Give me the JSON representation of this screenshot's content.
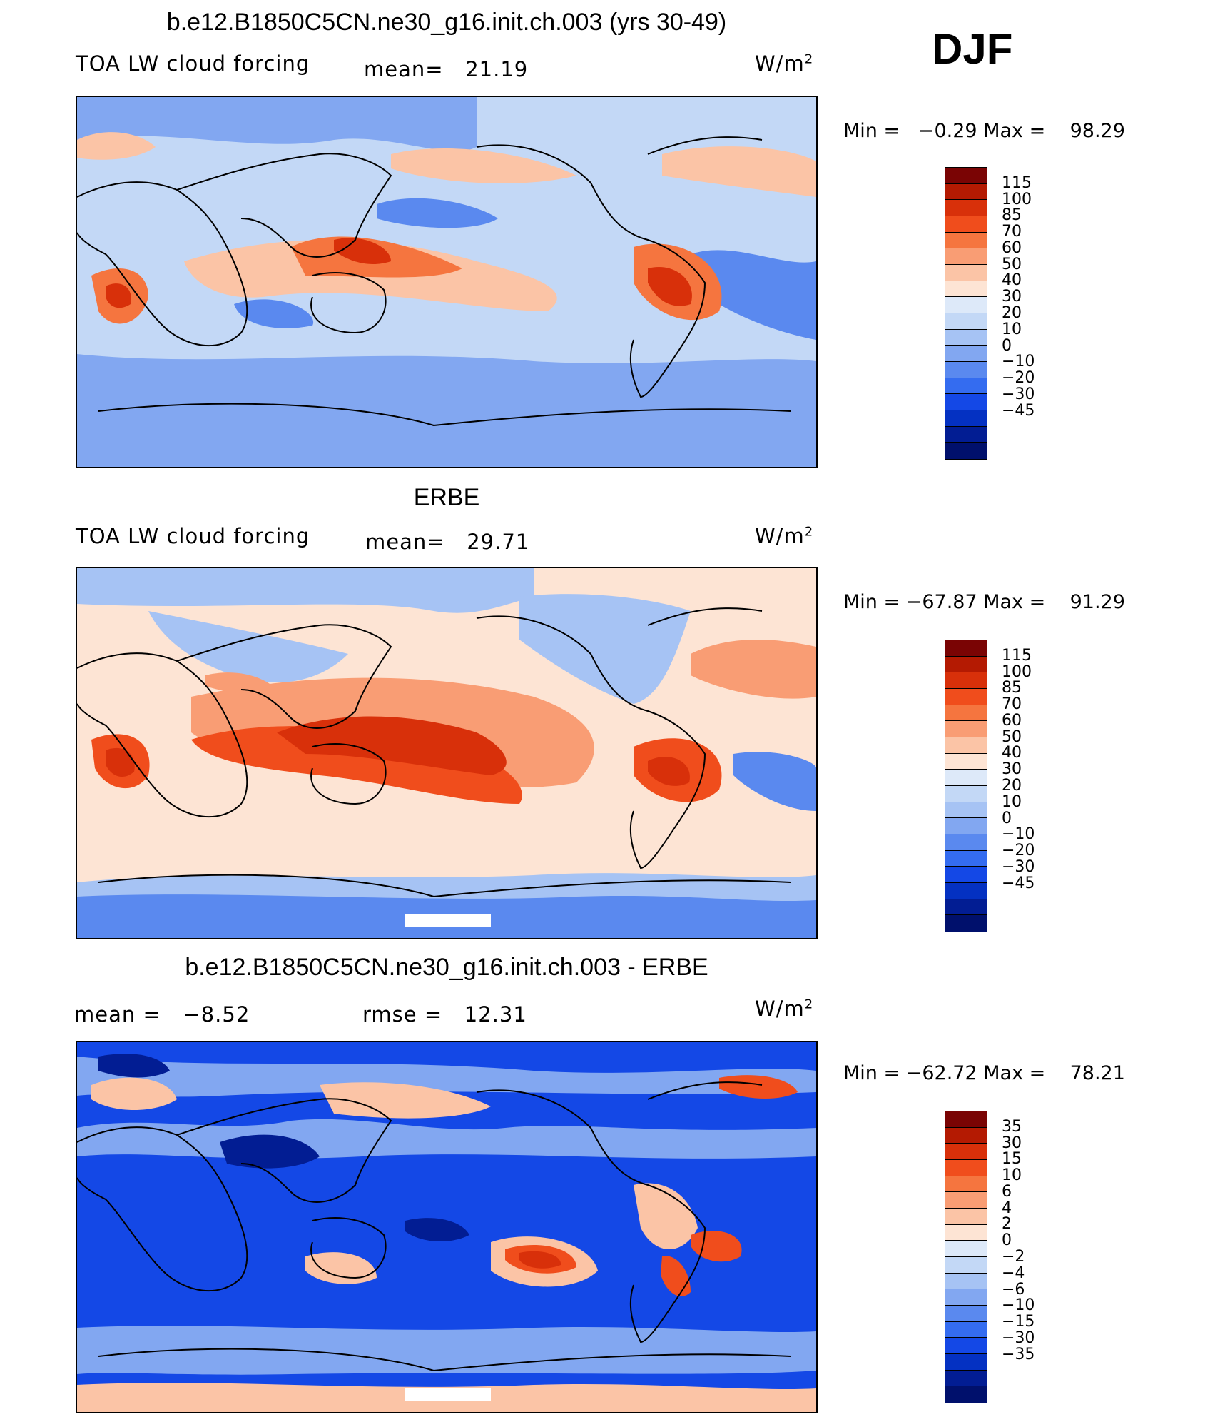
{
  "season": "DJF",
  "panels": [
    {
      "title": "b.e12.B1850C5CN.ne30_g16.init.ch.003 (yrs 30-49)",
      "variable": "TOA LW cloud forcing",
      "stat1_label": "mean=",
      "stat1_value": "21.19",
      "stat2_label": "",
      "stat2_value": "",
      "units_base": "W/m",
      "units_exp": "2",
      "min_label": "Min =",
      "min_value": "−0.29",
      "max_label": "Max =",
      "max_value": "98.29",
      "scale": [
        "115",
        "100",
        "85",
        "70",
        "60",
        "50",
        "40",
        "30",
        "20",
        "10",
        "0",
        "−10",
        "−20",
        "−30",
        "−45"
      ],
      "palette": [
        "#7a0404",
        "#b41a02",
        "#d8300a",
        "#f04d1c",
        "#f5753f",
        "#f99d74",
        "#fbc4a6",
        "#fde4d4",
        "#dde9f9",
        "#c3d8f6",
        "#a6c3f4",
        "#82a7f1",
        "#5a89ef",
        "#346cf0",
        "#1448e6",
        "#0431c2",
        "#021d93",
        "#00106c"
      ],
      "field_colors": {
        "base": "#c3d8f6",
        "pos1": "#fbc4a6",
        "pos2": "#f5753f",
        "pos3": "#d8300a",
        "neg1": "#82a7f1",
        "neg2": "#5a89ef"
      }
    },
    {
      "title": "ERBE",
      "variable": "TOA LW cloud forcing",
      "stat1_label": "mean=",
      "stat1_value": "29.71",
      "stat2_label": "",
      "stat2_value": "",
      "units_base": "W/m",
      "units_exp": "2",
      "min_label": "Min =",
      "min_value": "−67.87",
      "max_label": "Max =",
      "max_value": "91.29",
      "scale": [
        "115",
        "100",
        "85",
        "70",
        "60",
        "50",
        "40",
        "30",
        "20",
        "10",
        "0",
        "−10",
        "−20",
        "−30",
        "−45"
      ],
      "field_colors": {
        "base": "#fde4d4",
        "pos1": "#f99d74",
        "pos2": "#f04d1c",
        "pos3": "#d8300a",
        "neg1": "#a6c3f4",
        "neg2": "#5a89ef"
      }
    },
    {
      "title": "b.e12.B1850C5CN.ne30_g16.init.ch.003 - ERBE",
      "variable": "",
      "stat1_label": "mean =",
      "stat1_value": "−8.52",
      "stat2_label": "rmse =",
      "stat2_value": "12.31",
      "units_base": "W/m",
      "units_exp": "2",
      "min_label": "Min =",
      "min_value": "−62.72",
      "max_label": "Max =",
      "max_value": "78.21",
      "scale": [
        "35",
        "30",
        "15",
        "10",
        "6",
        "4",
        "2",
        "0",
        "−2",
        "−4",
        "−6",
        "−10",
        "−15",
        "−30",
        "−35"
      ],
      "field_colors": {
        "base": "#1448e6",
        "pos1": "#fbc4a6",
        "pos2": "#f04d1c",
        "pos3": "#d8300a",
        "neg1": "#82a7f1",
        "neg2": "#021d93"
      }
    }
  ]
}
